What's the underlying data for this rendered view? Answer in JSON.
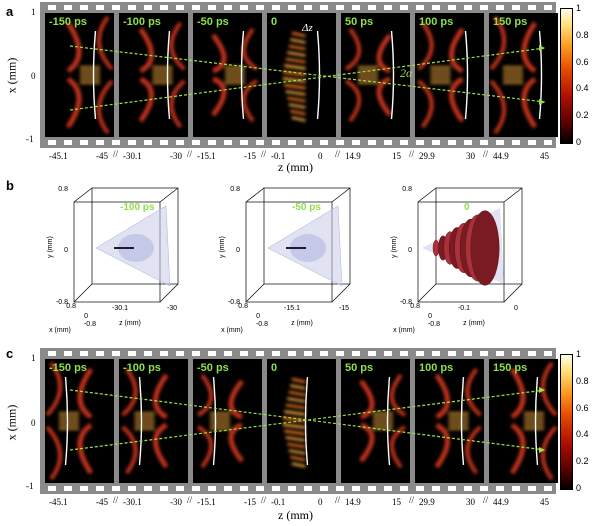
{
  "panels": {
    "a": {
      "label": "a"
    },
    "b": {
      "label": "b"
    },
    "c": {
      "label": "c"
    }
  },
  "frame_labels": [
    "-150 ps",
    "-100 ps",
    "-50 ps",
    "0",
    "50 ps",
    "100 ps",
    "150 ps"
  ],
  "x_axis": {
    "label": "x (mm)",
    "ticks": [
      "1",
      "0",
      "-1"
    ]
  },
  "z_axis": {
    "label": "z (mm)",
    "ticks": [
      [
        "-45.1",
        "-45"
      ],
      [
        "-30.1",
        "-30"
      ],
      [
        "-15.1",
        "-15"
      ],
      [
        "-0.1",
        "0"
      ],
      [
        "14.9",
        "15"
      ],
      [
        "29.9",
        "30"
      ],
      [
        "44.9",
        "45"
      ]
    ]
  },
  "annotations": {
    "delta_z": "Δz",
    "two_alpha": "2α"
  },
  "colorbar": {
    "ticks": [
      "1",
      "0.8",
      "0.6",
      "0.4",
      "0.2",
      "0"
    ]
  },
  "panel_b": {
    "boxes": [
      {
        "label": "-100 ps",
        "z_ticks": [
          "-30.1",
          "-30"
        ]
      },
      {
        "label": "-50 ps",
        "z_ticks": [
          "-15.1",
          "-15"
        ]
      },
      {
        "label": "0",
        "z_ticks": [
          "-0.1",
          "0"
        ]
      }
    ],
    "y_label": "y (mm)",
    "x_label": "x (mm)",
    "z_label": "z (mm)",
    "y_ticks": [
      "0.8",
      "0",
      "-0.8"
    ],
    "x_ticks": [
      "0.8",
      "0",
      "-0.8"
    ]
  },
  "colors": {
    "film": "#8a8a8a",
    "label_green": "#8ee04a",
    "dash_green": "#9be04a"
  }
}
